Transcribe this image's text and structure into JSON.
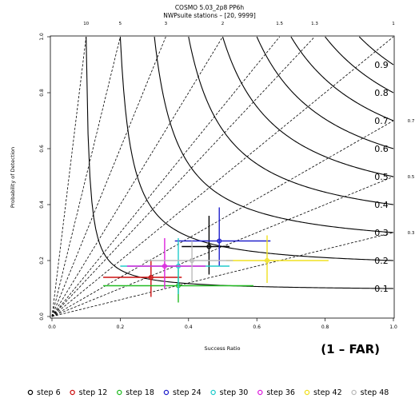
{
  "chart_data": {
    "type": "scatter",
    "title": "COSMO 5.03_2p8 PP6h",
    "subtitle": "NWPsuite stations – [20, 9999]",
    "xlabel": "Success Ratio",
    "ylabel": "Probability of Detection",
    "annotation": "(1 – FAR)",
    "xlim": [
      0,
      1
    ],
    "ylim": [
      0,
      1
    ],
    "x_ticks": [
      "0.0",
      "0.2",
      "0.4",
      "0.6",
      "0.8",
      "1.0"
    ],
    "y_ticks": [
      "0.0",
      "0.2",
      "0.4",
      "0.6",
      "0.8",
      "1.0"
    ],
    "bias_lines": [
      {
        "value": 10,
        "label": "10"
      },
      {
        "value": 5,
        "label": "5"
      },
      {
        "value": 3,
        "label": "3"
      },
      {
        "value": 2,
        "label": "2"
      },
      {
        "value": 1.5,
        "label": "1.5"
      },
      {
        "value": 1.3,
        "label": "1.3"
      },
      {
        "value": 1,
        "label": "1"
      },
      {
        "value": 0.7,
        "label": "0.7"
      },
      {
        "value": 0.5,
        "label": "0.5"
      },
      {
        "value": 0.3,
        "label": "0.3"
      }
    ],
    "csi_contours": [
      {
        "value": 0.1,
        "label": "0.1"
      },
      {
        "value": 0.2,
        "label": "0.2"
      },
      {
        "value": 0.3,
        "label": "0.3"
      },
      {
        "value": 0.4,
        "label": "0.4"
      },
      {
        "value": 0.5,
        "label": "0.5"
      },
      {
        "value": 0.6,
        "label": "0.6"
      },
      {
        "value": 0.7,
        "label": "0.7"
      },
      {
        "value": 0.8,
        "label": "0.8"
      },
      {
        "value": 0.9,
        "label": "0.9"
      }
    ],
    "series": [
      {
        "name": "step 6",
        "color": "#000000",
        "x": 0.46,
        "y": 0.25,
        "x_err": [
          0.38,
          0.52
        ],
        "y_err": [
          0.15,
          0.36
        ]
      },
      {
        "name": "step 12",
        "color": "#cc1111",
        "x": 0.29,
        "y": 0.14,
        "x_err": [
          0.15,
          0.38
        ],
        "y_err": [
          0.07,
          0.2
        ]
      },
      {
        "name": "step 18",
        "color": "#22bb22",
        "x": 0.37,
        "y": 0.11,
        "x_err": [
          0.15,
          0.59
        ],
        "y_err": [
          0.05,
          0.17
        ]
      },
      {
        "name": "step 24",
        "color": "#2222cc",
        "x": 0.49,
        "y": 0.27,
        "x_err": [
          0.36,
          0.64
        ],
        "y_err": [
          0.18,
          0.39
        ]
      },
      {
        "name": "step 30",
        "color": "#22cccc",
        "x": 0.37,
        "y": 0.18,
        "x_err": [
          0.2,
          0.52
        ],
        "y_err": [
          0.08,
          0.28
        ]
      },
      {
        "name": "step 36",
        "color": "#dd22dd",
        "x": 0.33,
        "y": 0.18,
        "x_err": [
          0.22,
          0.45
        ],
        "y_err": [
          0.1,
          0.28
        ]
      },
      {
        "name": "step 42",
        "color": "#f0e020",
        "x": 0.63,
        "y": 0.2,
        "x_err": [
          0.51,
          0.81
        ],
        "y_err": [
          0.12,
          0.29
        ]
      },
      {
        "name": "step 48",
        "color": "#bbbbbb",
        "x": 0.41,
        "y": 0.2,
        "x_err": [
          0.27,
          0.53
        ],
        "y_err": [
          0.12,
          0.27
        ]
      }
    ]
  }
}
